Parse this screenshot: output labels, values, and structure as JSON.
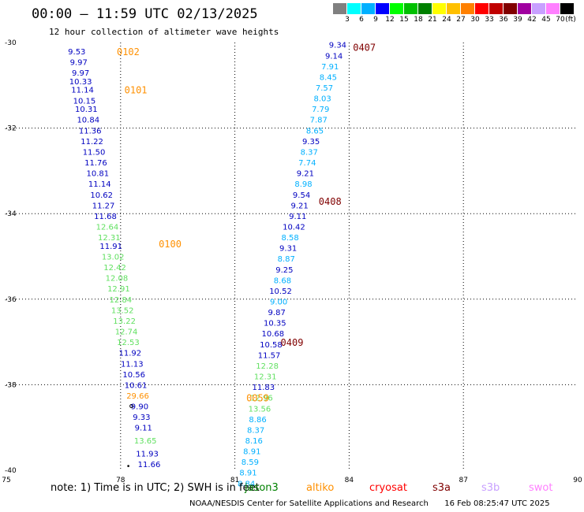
{
  "header": {
    "title": "00:00 — 11:59 UTC 02/13/2025",
    "subtitle": "12 hour collection of altimeter wave heights"
  },
  "colorbar": {
    "labels": [
      "3",
      "6",
      "9",
      "12",
      "15",
      "18",
      "21",
      "24",
      "27",
      "30",
      "33",
      "36",
      "39",
      "42",
      "45",
      "70"
    ],
    "unit": "(ft)",
    "colors": [
      "#808080",
      "#00ffff",
      "#00b0ff",
      "#0000ff",
      "#00ff00",
      "#00c000",
      "#008000",
      "#ffff00",
      "#ffc000",
      "#ff8000",
      "#ff0000",
      "#c00000",
      "#800000",
      "#a000a0",
      "#c8a0ff",
      "#ff80ff",
      "#000000"
    ]
  },
  "axes": {
    "lon_ticks": [
      "75",
      "78",
      "81",
      "84",
      "87",
      "90"
    ],
    "lat_ticks": [
      "-30",
      "-32",
      "-34",
      "-36",
      "-38",
      "-40"
    ]
  },
  "chart_data": {
    "type": "scatter",
    "xlim": [
      75,
      90
    ],
    "ylim": [
      -40,
      -30
    ],
    "grid": true,
    "tracks": [
      {
        "passes": [
          {
            "label": "0102",
            "lon": 77.9,
            "lat": -30.2,
            "color": "#ff9000"
          },
          {
            "label": "0101",
            "lon": 78.1,
            "lat": -31.1,
            "color": "#ff9000"
          },
          {
            "label": "0100",
            "lon": 79.0,
            "lat": -34.7,
            "color": "#ff9000"
          }
        ],
        "points": [
          {
            "v": "9.53",
            "lon": 76.85,
            "lat": -30.2,
            "c": "#0000c0"
          },
          {
            "v": "9.97",
            "lon": 76.9,
            "lat": -30.45,
            "c": "#0000c0"
          },
          {
            "v": "9.97",
            "lon": 76.95,
            "lat": -30.7,
            "c": "#0000c0"
          },
          {
            "v": "10.33",
            "lon": 76.95,
            "lat": -30.9,
            "c": "#0000c0"
          },
          {
            "v": "11.14",
            "lon": 77.0,
            "lat": -31.1,
            "c": "#0000c0"
          },
          {
            "v": "10.15",
            "lon": 77.05,
            "lat": -31.35,
            "c": "#0000c0"
          },
          {
            "v": "10.31",
            "lon": 77.1,
            "lat": -31.55,
            "c": "#0000c0"
          },
          {
            "v": "10.84",
            "lon": 77.15,
            "lat": -31.8,
            "c": "#0000c0"
          },
          {
            "v": "11.36",
            "lon": 77.2,
            "lat": -32.05,
            "c": "#0000c0"
          },
          {
            "v": "11.22",
            "lon": 77.25,
            "lat": -32.3,
            "c": "#0000c0"
          },
          {
            "v": "11.50",
            "lon": 77.3,
            "lat": -32.55,
            "c": "#0000c0"
          },
          {
            "v": "11.76",
            "lon": 77.35,
            "lat": -32.8,
            "c": "#0000c0"
          },
          {
            "v": "10.81",
            "lon": 77.4,
            "lat": -33.05,
            "c": "#0000c0"
          },
          {
            "v": "11.14",
            "lon": 77.45,
            "lat": -33.3,
            "c": "#0000c0"
          },
          {
            "v": "10.62",
            "lon": 77.5,
            "lat": -33.55,
            "c": "#0000c0"
          },
          {
            "v": "11.27",
            "lon": 77.55,
            "lat": -33.8,
            "c": "#0000c0"
          },
          {
            "v": "11.68",
            "lon": 77.6,
            "lat": -34.05,
            "c": "#0000c0"
          },
          {
            "v": "12.64",
            "lon": 77.65,
            "lat": -34.3,
            "c": "#60e060"
          },
          {
            "v": "12.31",
            "lon": 77.7,
            "lat": -34.55,
            "c": "#60e060"
          },
          {
            "v": "11.91",
            "lon": 77.75,
            "lat": -34.75,
            "c": "#0000c0"
          },
          {
            "v": "13.02",
            "lon": 77.8,
            "lat": -35.0,
            "c": "#60e060"
          },
          {
            "v": "12.42",
            "lon": 77.85,
            "lat": -35.25,
            "c": "#60e060"
          },
          {
            "v": "12.08",
            "lon": 77.9,
            "lat": -35.5,
            "c": "#60e060"
          },
          {
            "v": "12.91",
            "lon": 77.95,
            "lat": -35.75,
            "c": "#60e060"
          },
          {
            "v": "12.84",
            "lon": 78.0,
            "lat": -36.0,
            "c": "#60e060"
          },
          {
            "v": "13.52",
            "lon": 78.05,
            "lat": -36.25,
            "c": "#60e060"
          },
          {
            "v": "13.22",
            "lon": 78.1,
            "lat": -36.5,
            "c": "#60e060"
          },
          {
            "v": "12.74",
            "lon": 78.15,
            "lat": -36.75,
            "c": "#60e060"
          },
          {
            "v": "12.53",
            "lon": 78.2,
            "lat": -37.0,
            "c": "#60e060"
          },
          {
            "v": "11.92",
            "lon": 78.25,
            "lat": -37.25,
            "c": "#0000c0"
          },
          {
            "v": "11.13",
            "lon": 78.3,
            "lat": -37.5,
            "c": "#0000c0"
          },
          {
            "v": "10.56",
            "lon": 78.35,
            "lat": -37.75,
            "c": "#0000c0"
          },
          {
            "v": "10.61",
            "lon": 78.4,
            "lat": -38.0,
            "c": "#0000c0"
          },
          {
            "v": "29.66",
            "lon": 78.45,
            "lat": -38.25,
            "c": "#ff9000"
          },
          {
            "v": "9.90",
            "lon": 78.5,
            "lat": -38.5,
            "c": "#0000c0"
          },
          {
            "v": "9.33",
            "lon": 78.55,
            "lat": -38.75,
            "c": "#0000c0"
          },
          {
            "v": "9.11",
            "lon": 78.6,
            "lat": -39.0,
            "c": "#0000c0"
          },
          {
            "v": "13.65",
            "lon": 78.65,
            "lat": -39.3,
            "c": "#60e060"
          },
          {
            "v": "11.93",
            "lon": 78.7,
            "lat": -39.6,
            "c": "#0000c0"
          },
          {
            "v": "11.66",
            "lon": 78.75,
            "lat": -39.85,
            "c": "#0000c0"
          }
        ]
      },
      {
        "passes": [
          {
            "label": "0407",
            "lon": 84.1,
            "lat": -30.1,
            "color": "#800000"
          },
          {
            "label": "0408",
            "lon": 83.2,
            "lat": -33.7,
            "color": "#800000"
          },
          {
            "label": "0409",
            "lon": 82.2,
            "lat": -37.0,
            "color": "#800000"
          },
          {
            "label": "0059",
            "lon": 81.3,
            "lat": -38.3,
            "color": "#ff9000"
          }
        ],
        "points": [
          {
            "v": "9.34",
            "lon": 83.7,
            "lat": -30.05,
            "c": "#0000c0"
          },
          {
            "v": "9.14",
            "lon": 83.6,
            "lat": -30.3,
            "c": "#0000c0"
          },
          {
            "v": "7.91",
            "lon": 83.5,
            "lat": -30.55,
            "c": "#00b0ff"
          },
          {
            "v": "8.45",
            "lon": 83.45,
            "lat": -30.8,
            "c": "#00b0ff"
          },
          {
            "v": "7.57",
            "lon": 83.35,
            "lat": -31.05,
            "c": "#00b0ff"
          },
          {
            "v": "8.03",
            "lon": 83.3,
            "lat": -31.3,
            "c": "#00b0ff"
          },
          {
            "v": "7.79",
            "lon": 83.25,
            "lat": -31.55,
            "c": "#00b0ff"
          },
          {
            "v": "7.87",
            "lon": 83.2,
            "lat": -31.8,
            "c": "#00b0ff"
          },
          {
            "v": "8.65",
            "lon": 83.1,
            "lat": -32.05,
            "c": "#00b0ff"
          },
          {
            "v": "9.35",
            "lon": 83.0,
            "lat": -32.3,
            "c": "#0000c0"
          },
          {
            "v": "8.37",
            "lon": 82.95,
            "lat": -32.55,
            "c": "#00b0ff"
          },
          {
            "v": "7.74",
            "lon": 82.9,
            "lat": -32.8,
            "c": "#00b0ff"
          },
          {
            "v": "9.21",
            "lon": 82.85,
            "lat": -33.05,
            "c": "#0000c0"
          },
          {
            "v": "8.98",
            "lon": 82.8,
            "lat": -33.3,
            "c": "#00b0ff"
          },
          {
            "v": "9.54",
            "lon": 82.75,
            "lat": -33.55,
            "c": "#0000c0"
          },
          {
            "v": "9.21",
            "lon": 82.7,
            "lat": -33.8,
            "c": "#0000c0"
          },
          {
            "v": "9.11",
            "lon": 82.65,
            "lat": -34.05,
            "c": "#0000c0"
          },
          {
            "v": "10.42",
            "lon": 82.55,
            "lat": -34.3,
            "c": "#0000c0"
          },
          {
            "v": "8.58",
            "lon": 82.45,
            "lat": -34.55,
            "c": "#00b0ff"
          },
          {
            "v": "9.31",
            "lon": 82.4,
            "lat": -34.8,
            "c": "#0000c0"
          },
          {
            "v": "8.87",
            "lon": 82.35,
            "lat": -35.05,
            "c": "#00b0ff"
          },
          {
            "v": "9.25",
            "lon": 82.3,
            "lat": -35.3,
            "c": "#0000c0"
          },
          {
            "v": "8.68",
            "lon": 82.25,
            "lat": -35.55,
            "c": "#00b0ff"
          },
          {
            "v": "10.52",
            "lon": 82.2,
            "lat": -35.8,
            "c": "#0000c0"
          },
          {
            "v": "9.00",
            "lon": 82.15,
            "lat": -36.05,
            "c": "#00b0ff"
          },
          {
            "v": "9.87",
            "lon": 82.1,
            "lat": -36.3,
            "c": "#0000c0"
          },
          {
            "v": "10.35",
            "lon": 82.05,
            "lat": -36.55,
            "c": "#0000c0"
          },
          {
            "v": "10.68",
            "lon": 82.0,
            "lat": -36.8,
            "c": "#0000c0"
          },
          {
            "v": "10.58",
            "lon": 81.95,
            "lat": -37.05,
            "c": "#0000c0"
          },
          {
            "v": "11.57",
            "lon": 81.9,
            "lat": -37.3,
            "c": "#0000c0"
          },
          {
            "v": "12.28",
            "lon": 81.85,
            "lat": -37.55,
            "c": "#60e060"
          },
          {
            "v": "12.31",
            "lon": 81.8,
            "lat": -37.8,
            "c": "#60e060"
          },
          {
            "v": "11.83",
            "lon": 81.75,
            "lat": -38.05,
            "c": "#0000c0"
          },
          {
            "v": "12.96",
            "lon": 81.7,
            "lat": -38.3,
            "c": "#60e060"
          },
          {
            "v": "13.56",
            "lon": 81.65,
            "lat": -38.55,
            "c": "#60e060"
          },
          {
            "v": "8.86",
            "lon": 81.6,
            "lat": -38.8,
            "c": "#00b0ff"
          },
          {
            "v": "8.37",
            "lon": 81.55,
            "lat": -39.05,
            "c": "#00b0ff"
          },
          {
            "v": "8.16",
            "lon": 81.5,
            "lat": -39.3,
            "c": "#00b0ff"
          },
          {
            "v": "8.91",
            "lon": 81.45,
            "lat": -39.55,
            "c": "#00b0ff"
          },
          {
            "v": "8.59",
            "lon": 81.4,
            "lat": -39.8,
            "c": "#00b0ff"
          },
          {
            "v": "8.91",
            "lon": 81.35,
            "lat": -40.05,
            "c": "#00b0ff"
          },
          {
            "v": "8.84",
            "lon": 81.3,
            "lat": -40.3,
            "c": "#00b0ff"
          }
        ]
      }
    ],
    "markers": [
      {
        "lon": 75.8,
        "lat": -38.5,
        "symbol": "o"
      },
      {
        "lon": 75.8,
        "lat": -39.9,
        "symbol": "dot"
      }
    ]
  },
  "footer": {
    "note": "note: 1) Time is in UTC; 2) SWH is in feet",
    "legend": [
      {
        "label": "jason3",
        "color": "#008000"
      },
      {
        "label": "altiko",
        "color": "#ff9000"
      },
      {
        "label": "cryosat",
        "color": "#ff0000"
      },
      {
        "label": "s3a",
        "color": "#800000"
      },
      {
        "label": "s3b",
        "color": "#c8a0ff"
      },
      {
        "label": "swot",
        "color": "#ff80ff"
      }
    ],
    "credit": "NOAA/NESDIS Center for Satellite Applications and Research",
    "timestamp": "16 Feb 08:25:47 UTC 2025"
  }
}
